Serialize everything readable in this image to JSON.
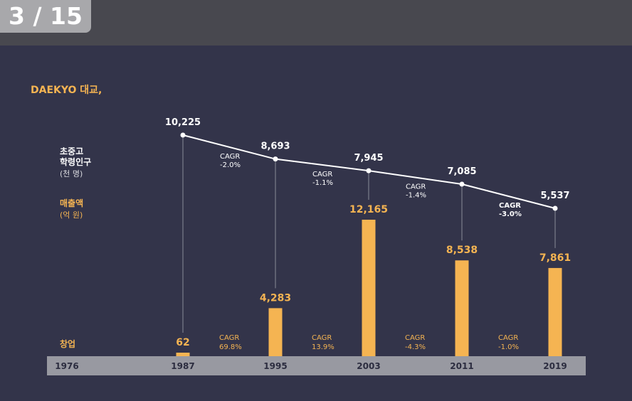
{
  "page_indicator": "3 / 15",
  "brand_title": "DAEKYO 대교,",
  "legend": {
    "population_label_line1": "초중고",
    "population_label_line2": "학령인구",
    "population_unit": "(천 명)",
    "revenue_label": "매출액",
    "revenue_unit": "(억 원)",
    "founding_label": "창업"
  },
  "colors": {
    "background": "#33344a",
    "top_bar": "#48484f",
    "badge": "#a8a8ab",
    "accent": "#f5b452",
    "axis_bar": "#9899a1",
    "line": "#ffffff"
  },
  "chart_data": {
    "type": "bar+line",
    "axis_labels": [
      "1976",
      "1987",
      "1995",
      "2003",
      "2011",
      "2019"
    ],
    "population_series": {
      "name": "초중고 학령인구 (천 명)",
      "x": [
        "1987",
        "1995",
        "2003",
        "2011",
        "2019"
      ],
      "values": [
        10225,
        8693,
        7945,
        7085,
        5537
      ],
      "labels": [
        "10,225",
        "8,693",
        "7,945",
        "7,085",
        "5,537"
      ],
      "ylim": [
        4500,
        10500
      ]
    },
    "revenue_series": {
      "name": "매출액 (억 원)",
      "x": [
        "1987",
        "1995",
        "2003",
        "2011",
        "2019"
      ],
      "values": [
        62,
        4283,
        12165,
        8538,
        7861
      ],
      "labels": [
        "62",
        "4,283",
        "12,165",
        "8,538",
        "7,861"
      ],
      "ylim": [
        0,
        12165
      ]
    },
    "population_cagr": [
      {
        "label": "CAGR",
        "value": "-2.0%"
      },
      {
        "label": "CAGR",
        "value": "-1.1%"
      },
      {
        "label": "CAGR",
        "value": "-1.4%"
      },
      {
        "label": "CAGR",
        "value": "-3.0%"
      }
    ],
    "revenue_cagr": [
      {
        "label": "CAGR",
        "value": "69.8%"
      },
      {
        "label": "CAGR",
        "value": "13.9%"
      },
      {
        "label": "CAGR",
        "value": "-4.3%"
      },
      {
        "label": "CAGR",
        "value": "-1.0%"
      }
    ]
  }
}
